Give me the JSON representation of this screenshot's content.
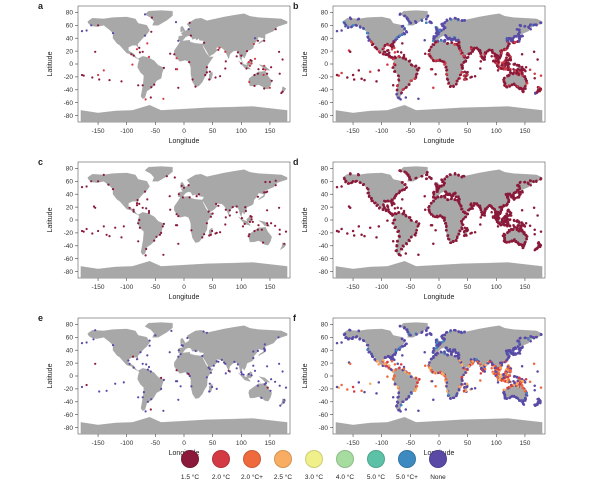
{
  "panels": [
    {
      "letter": "a",
      "pattern": "sparse-blue-red"
    },
    {
      "letter": "b",
      "pattern": "dense-mixed"
    },
    {
      "letter": "c",
      "pattern": "sparse-red"
    },
    {
      "letter": "d",
      "pattern": "dense-red"
    },
    {
      "letter": "e",
      "pattern": "sparse-blue"
    },
    {
      "letter": "f",
      "pattern": "dense-blue"
    }
  ],
  "axes": {
    "xlabel": "Longitude",
    "ylabel": "Latitude",
    "xticks": [
      "-150",
      "-100",
      "-50",
      "0",
      "50",
      "100",
      "150"
    ],
    "yticks": [
      "80",
      "60",
      "40",
      "20",
      "0",
      "-20",
      "-40",
      "-60",
      "-80"
    ]
  },
  "legend": [
    {
      "label": "1.5 °C",
      "color": "#8b1a3a"
    },
    {
      "label": "2.0 °C",
      "color": "#d43a44"
    },
    {
      "label": "2.0 °C+",
      "color": "#ee6a3c"
    },
    {
      "label": "2.5 °C",
      "color": "#f8ad62"
    },
    {
      "label": "3.0 °C",
      "color": "#f0f08a"
    },
    {
      "label": "4.0 °C",
      "color": "#a6dca0"
    },
    {
      "label": "5.0 °C",
      "color": "#5cc1a6"
    },
    {
      "label": "5.0 °C+",
      "color": "#3d8ac0"
    },
    {
      "label": "None",
      "color": "#5a4aa6"
    }
  ]
}
